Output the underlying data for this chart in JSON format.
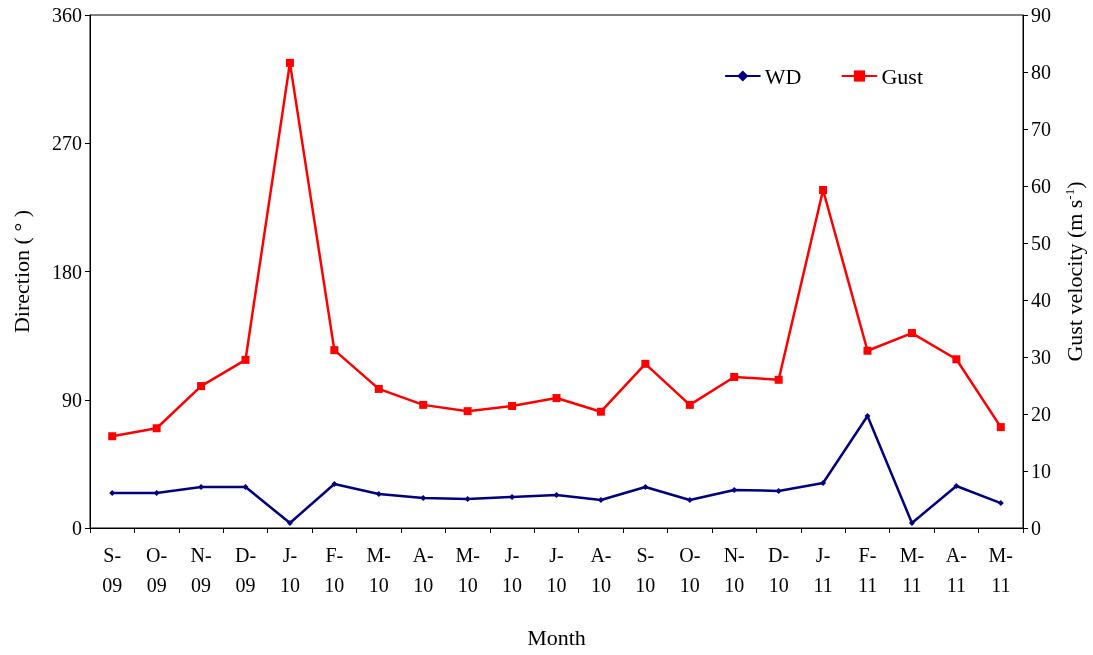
{
  "chart_data": {
    "type": "line",
    "xlabel": "Month",
    "ylabel": "Direction ( ° )",
    "y2label": "Gust velocity (m s$^{-1}$)",
    "categories": [
      "S-\n09",
      "O-\n09",
      "N-\n09",
      "D-\n09",
      "J-\n10",
      "F-\n10",
      "M-\n10",
      "A-\n10",
      "M-\n10",
      "J-\n10",
      "J-\n10",
      "A-\n10",
      "S-\n10",
      "O-\n10",
      "N-\n10",
      "D-\n10",
      "J-\n11",
      "F-\n11",
      "M-\n11",
      "A-\n11",
      "M-\n11"
    ],
    "series": [
      {
        "name": "WD",
        "color": "#000080",
        "marker": "diamond",
        "values": [
          24.6,
          24.6,
          28.8,
          28.8,
          3.5,
          30.9,
          23.9,
          21.1,
          20.4,
          21.8,
          23.2,
          19.6,
          28.8,
          19.6,
          26.7,
          26,
          31.6,
          78.6,
          3.5,
          29.5,
          17.5
        ]
      },
      {
        "name": "Gust",
        "color": "#ff0000",
        "marker": "square",
        "axis": "y2",
        "values": [
          16.1,
          17.5,
          24.9,
          29.5,
          81.6,
          31.2,
          24.4,
          21.6,
          20.5,
          21.4,
          22.8,
          20.4,
          28.8,
          21.6,
          26.5,
          26,
          59.3,
          31.1,
          34.2,
          29.6,
          17.7
        ]
      }
    ],
    "ylim": [
      0,
      360
    ],
    "yticks": [
      0,
      90,
      180,
      270,
      360
    ],
    "y2lim": [
      0,
      90
    ],
    "y2ticks": [
      0,
      10,
      20,
      30,
      40,
      50,
      60,
      70,
      80,
      90
    ],
    "legend": "top right",
    "grid": false,
    "line_style": "solid"
  }
}
